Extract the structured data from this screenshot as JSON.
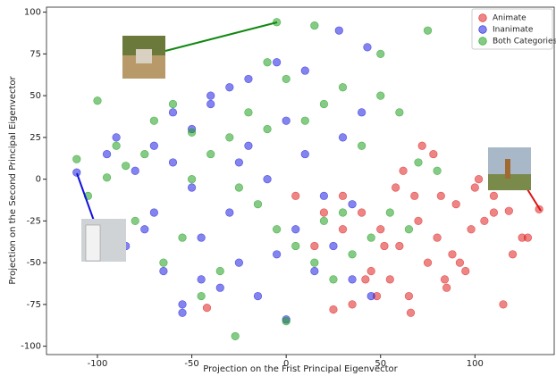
{
  "chart_data": {
    "type": "scatter",
    "xlabel": "Projection on the Frist Principal Eigenvector",
    "ylabel": "Projection on the Second Principal Eigenvector",
    "xlim": [
      -127,
      142
    ],
    "ylim": [
      -105,
      103
    ],
    "xticks": [
      -100,
      -50,
      0,
      50,
      100
    ],
    "yticks": [
      -100,
      -75,
      -50,
      -25,
      0,
      25,
      50,
      75,
      100
    ],
    "legend": "upper right",
    "series": [
      {
        "name": "Animate",
        "color": "#e02020",
        "x": [
          30,
          40,
          50,
          60,
          70,
          80,
          90,
          100,
          110,
          120,
          134,
          45,
          55,
          65,
          75,
          85,
          95,
          105,
          25,
          35,
          58,
          68,
          78,
          88,
          98,
          115,
          125,
          20,
          42,
          52,
          62,
          72,
          82,
          92,
          102,
          30,
          48,
          66,
          84,
          110,
          5,
          15,
          118,
          128,
          -42
        ],
        "values": [
          -10,
          -20,
          -30,
          -40,
          -25,
          -35,
          -15,
          -5,
          -20,
          -45,
          -18,
          -55,
          -60,
          -70,
          -50,
          -65,
          -55,
          -25,
          -78,
          -75,
          -5,
          -10,
          15,
          -45,
          -30,
          -75,
          -35,
          -20,
          -60,
          -40,
          5,
          20,
          -10,
          -50,
          0,
          -30,
          -70,
          -80,
          -60,
          -10,
          -10,
          -40,
          -19,
          -35,
          -77
        ]
      },
      {
        "name": "Inanimate",
        "color": "#1f1fe0",
        "x": [
          -111,
          -95,
          -90,
          -80,
          -70,
          -60,
          -50,
          -40,
          -30,
          -20,
          -10,
          0,
          10,
          20,
          30,
          40,
          -85,
          -75,
          -65,
          -55,
          -45,
          -35,
          -25,
          -15,
          -5,
          5,
          15,
          25,
          35,
          45,
          -60,
          -55,
          -40,
          -20,
          0,
          -5,
          28,
          43,
          -50,
          -30,
          10,
          -70,
          -45,
          35,
          -25
        ],
        "values": [
          4,
          15,
          25,
          5,
          -20,
          10,
          30,
          45,
          55,
          20,
          0,
          35,
          15,
          -10,
          25,
          40,
          -40,
          -30,
          -55,
          -75,
          -60,
          -65,
          -50,
          -70,
          -45,
          -30,
          -55,
          -40,
          -60,
          -70,
          40,
          -80,
          50,
          60,
          -84,
          70,
          89,
          79,
          -5,
          -20,
          65,
          20,
          -35,
          -15,
          10
        ]
      },
      {
        "name": "Both Categories",
        "color": "#20a020",
        "x": [
          -111,
          -105,
          -100,
          -95,
          -90,
          -85,
          -80,
          -70,
          -60,
          -50,
          -40,
          -30,
          -20,
          -10,
          0,
          10,
          20,
          30,
          40,
          50,
          60,
          70,
          75,
          80,
          -25,
          -15,
          -5,
          5,
          15,
          25,
          35,
          45,
          55,
          65,
          -75,
          -65,
          -55,
          -45,
          -35,
          -10,
          -5,
          15,
          30,
          50,
          0,
          -27,
          20,
          -50
        ],
        "values": [
          12,
          -10,
          47,
          1,
          20,
          8,
          -25,
          35,
          45,
          28,
          15,
          25,
          40,
          30,
          60,
          35,
          45,
          -20,
          20,
          50,
          40,
          10,
          89,
          5,
          -5,
          -15,
          -30,
          -40,
          -50,
          -60,
          -45,
          -35,
          -20,
          -30,
          15,
          -50,
          -35,
          -70,
          -55,
          70,
          94,
          92,
          55,
          75,
          -85,
          -94,
          -25,
          0
        ]
      }
    ]
  }
}
